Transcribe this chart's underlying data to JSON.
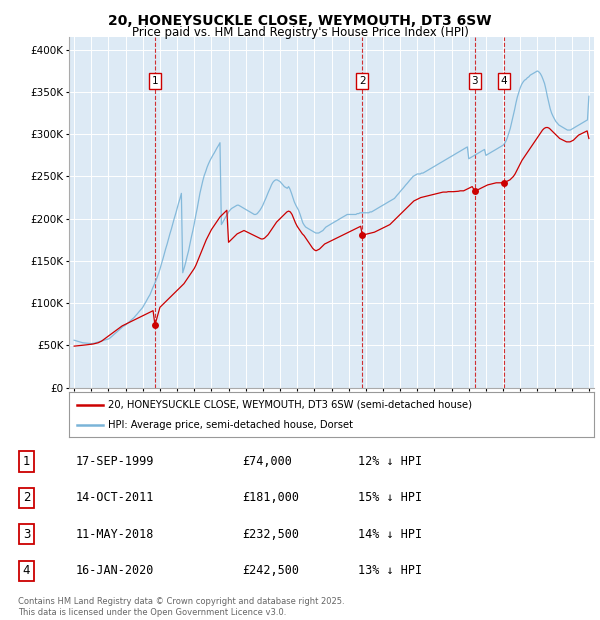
{
  "title": "20, HONEYSUCKLE CLOSE, WEYMOUTH, DT3 6SW",
  "subtitle": "Price paid vs. HM Land Registry's House Price Index (HPI)",
  "ytick_values": [
    0,
    50000,
    100000,
    150000,
    200000,
    250000,
    300000,
    350000,
    400000
  ],
  "ylim": [
    0,
    415000
  ],
  "xlim_start": 1994.7,
  "xlim_end": 2025.3,
  "legend_line1": "20, HONEYSUCKLE CLOSE, WEYMOUTH, DT3 6SW (semi-detached house)",
  "legend_line2": "HPI: Average price, semi-detached house, Dorset",
  "footer": "Contains HM Land Registry data © Crown copyright and database right 2025.\nThis data is licensed under the Open Government Licence v3.0.",
  "sale_color": "#cc0000",
  "hpi_color": "#7ab4d8",
  "background_plot": "#ddeaf5",
  "grid_color": "#ffffff",
  "transactions": [
    {
      "num": 1,
      "date": "17-SEP-1999",
      "date_x": 1999.71,
      "price": 74000,
      "label": "12% ↓ HPI"
    },
    {
      "num": 2,
      "date": "14-OCT-2011",
      "date_x": 2011.79,
      "price": 181000,
      "label": "15% ↓ HPI"
    },
    {
      "num": 3,
      "date": "11-MAY-2018",
      "date_x": 2018.36,
      "price": 232500,
      "label": "14% ↓ HPI"
    },
    {
      "num": 4,
      "date": "16-JAN-2020",
      "date_x": 2020.04,
      "price": 242500,
      "label": "13% ↓ HPI"
    }
  ],
  "hpi_x": [
    1995.0,
    1995.08,
    1995.17,
    1995.25,
    1995.33,
    1995.42,
    1995.5,
    1995.58,
    1995.67,
    1995.75,
    1995.83,
    1995.92,
    1996.0,
    1996.08,
    1996.17,
    1996.25,
    1996.33,
    1996.42,
    1996.5,
    1996.58,
    1996.67,
    1996.75,
    1996.83,
    1996.92,
    1997.0,
    1997.08,
    1997.17,
    1997.25,
    1997.33,
    1997.42,
    1997.5,
    1997.58,
    1997.67,
    1997.75,
    1997.83,
    1997.92,
    1998.0,
    1998.08,
    1998.17,
    1998.25,
    1998.33,
    1998.42,
    1998.5,
    1998.58,
    1998.67,
    1998.75,
    1998.83,
    1998.92,
    1999.0,
    1999.08,
    1999.17,
    1999.25,
    1999.33,
    1999.42,
    1999.5,
    1999.58,
    1999.67,
    1999.75,
    1999.83,
    1999.92,
    2000.0,
    2000.08,
    2000.17,
    2000.25,
    2000.33,
    2000.42,
    2000.5,
    2000.58,
    2000.67,
    2000.75,
    2000.83,
    2000.92,
    2001.0,
    2001.08,
    2001.17,
    2001.25,
    2001.33,
    2001.42,
    2001.5,
    2001.58,
    2001.67,
    2001.75,
    2001.83,
    2001.92,
    2002.0,
    2002.08,
    2002.17,
    2002.25,
    2002.33,
    2002.42,
    2002.5,
    2002.58,
    2002.67,
    2002.75,
    2002.83,
    2002.92,
    2003.0,
    2003.08,
    2003.17,
    2003.25,
    2003.33,
    2003.42,
    2003.5,
    2003.58,
    2003.67,
    2003.75,
    2003.83,
    2003.92,
    2004.0,
    2004.08,
    2004.17,
    2004.25,
    2004.33,
    2004.42,
    2004.5,
    2004.58,
    2004.67,
    2004.75,
    2004.83,
    2004.92,
    2005.0,
    2005.08,
    2005.17,
    2005.25,
    2005.33,
    2005.42,
    2005.5,
    2005.58,
    2005.67,
    2005.75,
    2005.83,
    2005.92,
    2006.0,
    2006.08,
    2006.17,
    2006.25,
    2006.33,
    2006.42,
    2006.5,
    2006.58,
    2006.67,
    2006.75,
    2006.83,
    2006.92,
    2007.0,
    2007.08,
    2007.17,
    2007.25,
    2007.33,
    2007.42,
    2007.5,
    2007.58,
    2007.67,
    2007.75,
    2007.83,
    2007.92,
    2008.0,
    2008.08,
    2008.17,
    2008.25,
    2008.33,
    2008.42,
    2008.5,
    2008.58,
    2008.67,
    2008.75,
    2008.83,
    2008.92,
    2009.0,
    2009.08,
    2009.17,
    2009.25,
    2009.33,
    2009.42,
    2009.5,
    2009.58,
    2009.67,
    2009.75,
    2009.83,
    2009.92,
    2010.0,
    2010.08,
    2010.17,
    2010.25,
    2010.33,
    2010.42,
    2010.5,
    2010.58,
    2010.67,
    2010.75,
    2010.83,
    2010.92,
    2011.0,
    2011.08,
    2011.17,
    2011.25,
    2011.33,
    2011.42,
    2011.5,
    2011.58,
    2011.67,
    2011.75,
    2011.83,
    2011.92,
    2012.0,
    2012.08,
    2012.17,
    2012.25,
    2012.33,
    2012.42,
    2012.5,
    2012.58,
    2012.67,
    2012.75,
    2012.83,
    2012.92,
    2013.0,
    2013.08,
    2013.17,
    2013.25,
    2013.33,
    2013.42,
    2013.5,
    2013.58,
    2013.67,
    2013.75,
    2013.83,
    2013.92,
    2014.0,
    2014.08,
    2014.17,
    2014.25,
    2014.33,
    2014.42,
    2014.5,
    2014.58,
    2014.67,
    2014.75,
    2014.83,
    2014.92,
    2015.0,
    2015.08,
    2015.17,
    2015.25,
    2015.33,
    2015.42,
    2015.5,
    2015.58,
    2015.67,
    2015.75,
    2015.83,
    2015.92,
    2016.0,
    2016.08,
    2016.17,
    2016.25,
    2016.33,
    2016.42,
    2016.5,
    2016.58,
    2016.67,
    2016.75,
    2016.83,
    2016.92,
    2017.0,
    2017.08,
    2017.17,
    2017.25,
    2017.33,
    2017.42,
    2017.5,
    2017.58,
    2017.67,
    2017.75,
    2017.83,
    2017.92,
    2018.0,
    2018.08,
    2018.17,
    2018.25,
    2018.33,
    2018.42,
    2018.5,
    2018.58,
    2018.67,
    2018.75,
    2018.83,
    2018.92,
    2019.0,
    2019.08,
    2019.17,
    2019.25,
    2019.33,
    2019.42,
    2019.5,
    2019.58,
    2019.67,
    2019.75,
    2019.83,
    2019.92,
    2020.0,
    2020.08,
    2020.17,
    2020.25,
    2020.33,
    2020.42,
    2020.5,
    2020.58,
    2020.67,
    2020.75,
    2020.83,
    2020.92,
    2021.0,
    2021.08,
    2021.17,
    2021.25,
    2021.33,
    2021.42,
    2021.5,
    2021.58,
    2021.67,
    2021.75,
    2021.83,
    2021.92,
    2022.0,
    2022.08,
    2022.17,
    2022.25,
    2022.33,
    2022.42,
    2022.5,
    2022.58,
    2022.67,
    2022.75,
    2022.83,
    2022.92,
    2023.0,
    2023.08,
    2023.17,
    2023.25,
    2023.33,
    2023.42,
    2023.5,
    2023.58,
    2023.67,
    2023.75,
    2023.83,
    2023.92,
    2024.0,
    2024.08,
    2024.17,
    2024.25,
    2024.33,
    2024.42,
    2024.5,
    2024.58,
    2024.67,
    2024.75,
    2024.83,
    2024.92,
    2025.0
  ],
  "hpi_y": [
    56000,
    55500,
    55000,
    54500,
    54000,
    53500,
    53000,
    52800,
    52600,
    52500,
    52300,
    52100,
    52000,
    52200,
    52500,
    53000,
    53500,
    54000,
    54500,
    55000,
    55500,
    56000,
    56500,
    57000,
    57500,
    58500,
    60000,
    61500,
    63000,
    64500,
    66000,
    67500,
    69000,
    70500,
    72000,
    73000,
    74000,
    75500,
    77000,
    78500,
    80000,
    81500,
    83000,
    85000,
    87000,
    89000,
    91000,
    93000,
    95000,
    98000,
    101000,
    104000,
    107000,
    110000,
    114000,
    118000,
    122000,
    126000,
    130000,
    135000,
    140000,
    146000,
    152000,
    158000,
    164000,
    170000,
    176000,
    182000,
    188000,
    194000,
    200000,
    206000,
    212000,
    218000,
    224000,
    230000,
    136000,
    142000,
    148000,
    155000,
    162000,
    170000,
    178000,
    186000,
    194000,
    203000,
    212000,
    221000,
    230000,
    238000,
    245000,
    251000,
    256000,
    261000,
    265000,
    269000,
    272000,
    275000,
    278000,
    281000,
    284000,
    287000,
    290000,
    193000,
    196000,
    199000,
    202000,
    205000,
    208000,
    210000,
    212000,
    213000,
    214000,
    215000,
    216000,
    216000,
    215000,
    214000,
    213000,
    212000,
    211000,
    210000,
    209000,
    208000,
    207000,
    206000,
    205000,
    205000,
    206000,
    208000,
    210000,
    213000,
    216000,
    220000,
    224000,
    228000,
    232000,
    236000,
    240000,
    243000,
    245000,
    246000,
    246000,
    245000,
    244000,
    242000,
    240000,
    238000,
    237000,
    236000,
    238000,
    235000,
    230000,
    225000,
    220000,
    216000,
    213000,
    210000,
    205000,
    200000,
    195000,
    192000,
    190000,
    189000,
    188000,
    187000,
    186000,
    185000,
    184000,
    183000,
    183000,
    183000,
    184000,
    185000,
    186000,
    188000,
    190000,
    191000,
    192000,
    193000,
    194000,
    195000,
    196000,
    197000,
    198000,
    199000,
    200000,
    201000,
    202000,
    203000,
    204000,
    205000,
    205000,
    205000,
    205000,
    205000,
    205000,
    205000,
    206000,
    206000,
    207000,
    207000,
    207000,
    207000,
    207000,
    207000,
    207000,
    208000,
    208000,
    209000,
    210000,
    211000,
    212000,
    213000,
    214000,
    215000,
    216000,
    217000,
    218000,
    219000,
    220000,
    221000,
    222000,
    223000,
    224000,
    226000,
    228000,
    230000,
    232000,
    234000,
    236000,
    238000,
    240000,
    242000,
    244000,
    246000,
    248000,
    250000,
    251000,
    252000,
    253000,
    253000,
    253000,
    254000,
    254000,
    255000,
    256000,
    257000,
    258000,
    259000,
    260000,
    261000,
    262000,
    263000,
    264000,
    265000,
    266000,
    267000,
    268000,
    269000,
    270000,
    271000,
    272000,
    273000,
    274000,
    275000,
    276000,
    277000,
    278000,
    279000,
    280000,
    281000,
    282000,
    283000,
    284000,
    285000,
    271000,
    272000,
    273000,
    274000,
    275000,
    276000,
    277000,
    278000,
    279000,
    280000,
    281000,
    282000,
    275000,
    276000,
    277000,
    278000,
    279000,
    280000,
    281000,
    282000,
    283000,
    284000,
    285000,
    286000,
    287000,
    289000,
    292000,
    296000,
    301000,
    307000,
    314000,
    321000,
    329000,
    337000,
    344000,
    350000,
    355000,
    359000,
    362000,
    364000,
    365000,
    367000,
    368000,
    370000,
    371000,
    372000,
    373000,
    374000,
    375000,
    374000,
    372000,
    369000,
    365000,
    360000,
    353000,
    345000,
    337000,
    330000,
    325000,
    321000,
    318000,
    315000,
    313000,
    311000,
    310000,
    309000,
    308000,
    307000,
    306000,
    305000,
    305000,
    305000,
    306000,
    307000,
    308000,
    309000,
    310000,
    311000,
    312000,
    313000,
    314000,
    315000,
    316000,
    317000,
    345000
  ],
  "sale_x": [
    1995.0,
    1995.1,
    1995.2,
    1995.3,
    1995.4,
    1995.5,
    1995.6,
    1995.7,
    1995.8,
    1995.9,
    1996.0,
    1996.1,
    1996.2,
    1996.3,
    1996.4,
    1996.5,
    1996.6,
    1996.7,
    1996.8,
    1996.9,
    1997.0,
    1997.1,
    1997.2,
    1997.3,
    1997.4,
    1997.5,
    1997.6,
    1997.7,
    1997.8,
    1997.9,
    1998.0,
    1998.1,
    1998.2,
    1998.3,
    1998.4,
    1998.5,
    1998.6,
    1998.7,
    1998.8,
    1998.9,
    1999.0,
    1999.1,
    1999.2,
    1999.3,
    1999.4,
    1999.5,
    1999.6,
    1999.71,
    2000.0,
    2000.1,
    2000.2,
    2000.3,
    2000.4,
    2000.5,
    2000.6,
    2000.7,
    2000.8,
    2000.9,
    2001.0,
    2001.1,
    2001.2,
    2001.3,
    2001.4,
    2001.5,
    2001.6,
    2001.7,
    2001.8,
    2001.9,
    2002.0,
    2002.1,
    2002.2,
    2002.3,
    2002.4,
    2002.5,
    2002.6,
    2002.7,
    2002.8,
    2002.9,
    2003.0,
    2003.1,
    2003.2,
    2003.3,
    2003.4,
    2003.5,
    2003.6,
    2003.7,
    2003.8,
    2003.9,
    2004.0,
    2004.1,
    2004.2,
    2004.3,
    2004.4,
    2004.5,
    2004.6,
    2004.7,
    2004.8,
    2004.9,
    2005.0,
    2005.1,
    2005.2,
    2005.3,
    2005.4,
    2005.5,
    2005.6,
    2005.7,
    2005.8,
    2005.9,
    2006.0,
    2006.1,
    2006.2,
    2006.3,
    2006.4,
    2006.5,
    2006.6,
    2006.7,
    2006.8,
    2006.9,
    2007.0,
    2007.1,
    2007.2,
    2007.3,
    2007.4,
    2007.5,
    2007.6,
    2007.7,
    2007.8,
    2007.9,
    2008.0,
    2008.1,
    2008.2,
    2008.3,
    2008.4,
    2008.5,
    2008.6,
    2008.7,
    2008.8,
    2008.9,
    2009.0,
    2009.1,
    2009.2,
    2009.3,
    2009.4,
    2009.5,
    2009.6,
    2009.7,
    2009.8,
    2009.9,
    2010.0,
    2010.1,
    2010.2,
    2010.3,
    2010.4,
    2010.5,
    2010.6,
    2010.7,
    2010.8,
    2010.9,
    2011.0,
    2011.1,
    2011.2,
    2011.3,
    2011.4,
    2011.5,
    2011.6,
    2011.7,
    2011.79,
    2012.0,
    2012.1,
    2012.2,
    2012.3,
    2012.4,
    2012.5,
    2012.6,
    2012.7,
    2012.8,
    2012.9,
    2013.0,
    2013.1,
    2013.2,
    2013.3,
    2013.4,
    2013.5,
    2013.6,
    2013.7,
    2013.8,
    2013.9,
    2014.0,
    2014.1,
    2014.2,
    2014.3,
    2014.4,
    2014.5,
    2014.6,
    2014.7,
    2014.8,
    2014.9,
    2015.0,
    2015.1,
    2015.2,
    2015.3,
    2015.4,
    2015.5,
    2015.6,
    2015.7,
    2015.8,
    2015.9,
    2016.0,
    2016.1,
    2016.2,
    2016.3,
    2016.4,
    2016.5,
    2016.6,
    2016.7,
    2016.8,
    2016.9,
    2017.0,
    2017.1,
    2017.2,
    2017.3,
    2017.4,
    2017.5,
    2017.6,
    2017.7,
    2017.8,
    2017.9,
    2018.0,
    2018.1,
    2018.2,
    2018.36,
    2018.5,
    2018.6,
    2018.7,
    2018.8,
    2018.9,
    2019.0,
    2019.1,
    2019.2,
    2019.3,
    2019.4,
    2019.5,
    2019.6,
    2019.7,
    2019.8,
    2019.9,
    2020.0,
    2020.04,
    2020.2,
    2020.3,
    2020.4,
    2020.5,
    2020.6,
    2020.7,
    2020.8,
    2020.9,
    2021.0,
    2021.1,
    2021.2,
    2021.3,
    2021.4,
    2021.5,
    2021.6,
    2021.7,
    2021.8,
    2021.9,
    2022.0,
    2022.1,
    2022.2,
    2022.3,
    2022.4,
    2022.5,
    2022.6,
    2022.7,
    2022.8,
    2022.9,
    2023.0,
    2023.1,
    2023.2,
    2023.3,
    2023.4,
    2023.5,
    2023.6,
    2023.7,
    2023.8,
    2023.9,
    2024.0,
    2024.1,
    2024.2,
    2024.3,
    2024.4,
    2024.5,
    2024.6,
    2024.7,
    2024.8,
    2024.9,
    2025.0
  ],
  "sale_y": [
    49000,
    49200,
    49400,
    49600,
    49800,
    50000,
    50200,
    50500,
    50800,
    51000,
    51200,
    51500,
    52000,
    52500,
    53000,
    54000,
    55000,
    56500,
    58000,
    59500,
    61000,
    62500,
    64000,
    65500,
    67000,
    68500,
    70000,
    71500,
    73000,
    74000,
    75000,
    76000,
    77000,
    78000,
    79000,
    80000,
    81000,
    82000,
    83000,
    84000,
    85000,
    86000,
    87000,
    88000,
    89000,
    90000,
    91000,
    74000,
    95000,
    97000,
    99000,
    101000,
    103000,
    105000,
    107000,
    109000,
    111000,
    113000,
    115000,
    117000,
    119000,
    121000,
    123000,
    126000,
    129000,
    132000,
    135000,
    138000,
    141000,
    145000,
    150000,
    155000,
    160000,
    165000,
    170000,
    175000,
    179000,
    183000,
    187000,
    190000,
    193000,
    196000,
    199000,
    202000,
    204000,
    206000,
    208000,
    210000,
    172000,
    174000,
    176000,
    178000,
    180000,
    182000,
    183000,
    184000,
    185000,
    186000,
    185000,
    184000,
    183000,
    182000,
    181000,
    180000,
    179000,
    178000,
    177000,
    176000,
    176000,
    177000,
    179000,
    181000,
    184000,
    187000,
    190000,
    193000,
    196000,
    198000,
    200000,
    202000,
    204000,
    206000,
    208000,
    209000,
    208000,
    205000,
    200000,
    195000,
    191000,
    188000,
    185000,
    182000,
    180000,
    177000,
    174000,
    171000,
    168000,
    165000,
    163000,
    162000,
    163000,
    164000,
    166000,
    168000,
    170000,
    171000,
    172000,
    173000,
    174000,
    175000,
    176000,
    177000,
    178000,
    179000,
    180000,
    181000,
    182000,
    183000,
    184000,
    185000,
    186000,
    187000,
    188000,
    189000,
    190000,
    191000,
    181000,
    181500,
    182000,
    182500,
    183000,
    183500,
    184000,
    185000,
    186000,
    187000,
    188000,
    189000,
    190000,
    191000,
    192000,
    193000,
    195000,
    197000,
    199000,
    201000,
    203000,
    205000,
    207000,
    209000,
    211000,
    213000,
    215000,
    217000,
    219000,
    221000,
    222000,
    223000,
    224000,
    225000,
    225500,
    226000,
    226500,
    227000,
    227500,
    228000,
    228500,
    229000,
    229500,
    230000,
    230500,
    231000,
    231500,
    231500,
    231500,
    232000,
    232000,
    232000,
    232000,
    232200,
    232400,
    232500,
    233000,
    233000,
    233000,
    234000,
    235000,
    236000,
    237000,
    238000,
    232500,
    234000,
    235000,
    236000,
    237000,
    238000,
    239000,
    240000,
    240500,
    241000,
    241500,
    242000,
    242500,
    242500,
    242500,
    242500,
    243000,
    242500,
    244000,
    245000,
    246000,
    248000,
    250000,
    253000,
    257000,
    261000,
    265000,
    269000,
    272000,
    275000,
    278000,
    281000,
    284000,
    287000,
    290000,
    293000,
    296000,
    299000,
    302000,
    305000,
    307000,
    308000,
    308000,
    307000,
    305000,
    303000,
    301000,
    299000,
    297000,
    295000,
    294000,
    293000,
    292000,
    291000,
    291000,
    291000,
    292000,
    293000,
    295000,
    297000,
    299000,
    300000,
    301000,
    302000,
    303000,
    304000,
    295000
  ]
}
